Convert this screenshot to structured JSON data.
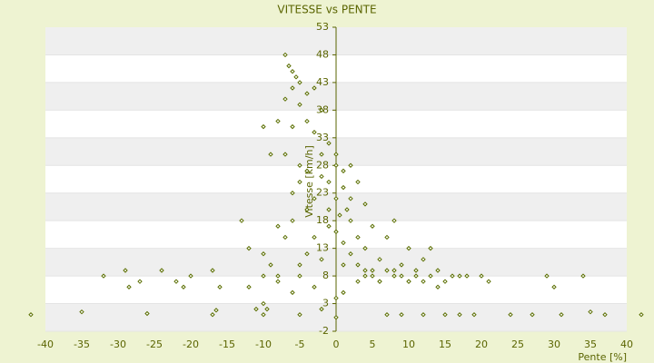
{
  "chart_data": {
    "type": "scatter",
    "title": "VITESSE vs PENTE",
    "xlabel": "Pente [%]",
    "ylabel": "Vitesse [km/h]",
    "color": "#5a6e00",
    "grid": true,
    "xlim": [
      -40,
      40
    ],
    "xticks": [
      -40,
      -35,
      -30,
      -25,
      -20,
      -15,
      -10,
      -5,
      0,
      5,
      10,
      15,
      20,
      25,
      30,
      35,
      40
    ],
    "ylim": [
      -2,
      53
    ],
    "yticks": [
      -2,
      3,
      8,
      13,
      18,
      23,
      28,
      33,
      38,
      43,
      48,
      53
    ],
    "x": [
      -42,
      -35,
      -26,
      -17,
      -16.5,
      -10,
      -9.5,
      7,
      9,
      12,
      15,
      17,
      19,
      24,
      27,
      31,
      35,
      37,
      42,
      -32,
      -29,
      -28.5,
      -27,
      -24,
      -22,
      -21,
      -20,
      -17,
      -16,
      -12,
      -10,
      -8,
      -5,
      3,
      4,
      5,
      6,
      8,
      9,
      10,
      11,
      12,
      13,
      14,
      15,
      17,
      20,
      21,
      30,
      34,
      29,
      -7,
      -6.5,
      -6,
      -5.5,
      -6,
      -5,
      -7,
      -4,
      -5,
      -3,
      -4,
      -2,
      -3,
      -6,
      -8,
      -10,
      -9,
      -7,
      -5,
      -2,
      -1,
      0,
      1,
      -1,
      0,
      1,
      2,
      1.5,
      0.5,
      -3,
      -4,
      -6,
      -7,
      -9,
      -12,
      -13,
      -10,
      -8,
      -5,
      -6,
      -3,
      -2,
      -1,
      0,
      2,
      3,
      4,
      2,
      1,
      3,
      5,
      6,
      4,
      7,
      8,
      6,
      9,
      10,
      11,
      7,
      8,
      5,
      10,
      12,
      14,
      16,
      13,
      18,
      2,
      0,
      -2,
      -4,
      -1,
      3,
      4,
      1,
      -4,
      -5,
      -8,
      -6,
      -3,
      0,
      1,
      -10,
      -11,
      -2,
      -5,
      0
    ],
    "values": [
      1,
      1.5,
      1.2,
      1,
      1.8,
      1,
      2,
      1,
      1,
      1,
      1,
      1,
      1,
      1,
      1,
      1,
      1.5,
      1,
      1,
      8,
      9,
      6,
      7,
      9,
      7,
      6,
      8,
      9,
      6,
      6,
      8,
      7,
      8,
      7,
      9,
      8,
      7,
      9,
      8,
      7,
      9,
      7,
      8,
      6,
      7,
      8,
      8,
      7,
      6,
      8,
      8,
      48,
      46,
      45,
      44,
      42,
      43,
      40,
      41,
      39,
      42,
      36,
      38,
      34,
      35,
      36,
      35,
      30,
      30,
      28,
      30,
      32,
      28,
      27,
      25,
      22,
      24,
      22,
      20,
      19,
      22,
      20,
      18,
      15,
      10,
      13,
      18,
      12,
      17,
      25,
      23,
      15,
      11,
      17,
      16,
      18,
      15,
      13,
      12,
      10,
      10,
      9,
      11,
      8,
      9,
      8,
      7,
      10,
      7,
      8,
      15,
      18,
      17,
      13,
      11,
      9,
      8,
      13,
      8,
      28,
      30,
      26,
      27,
      20,
      25,
      21,
      14,
      12,
      10,
      8,
      5,
      6,
      4,
      5,
      3,
      2,
      2,
      1,
      0.5
    ]
  }
}
